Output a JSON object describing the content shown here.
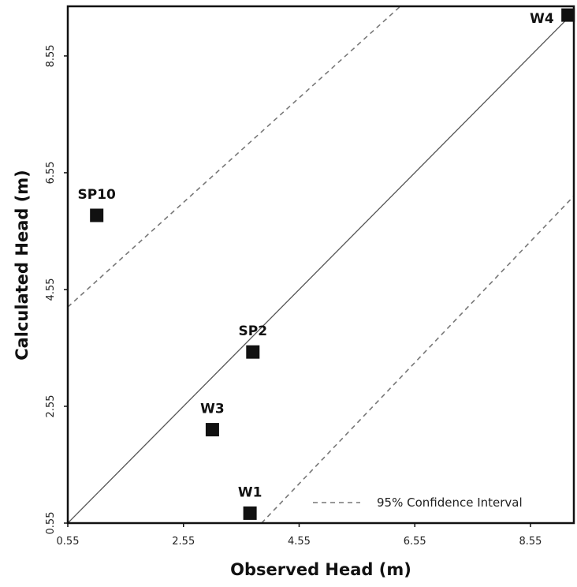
{
  "chart_data": {
    "type": "scatter",
    "title": "",
    "xlabel": "Observed Head (m)",
    "ylabel": "Calculated Head (m)",
    "xlim": [
      0.55,
      9.3
    ],
    "ylim": [
      0.55,
      9.4
    ],
    "xticks": [
      "0.55",
      "2.55",
      "4.55",
      "6.55",
      "8.55"
    ],
    "yticks": [
      "0.55",
      "2.55",
      "4.55",
      "6.55",
      "8.55"
    ],
    "grid": false,
    "points": [
      {
        "label": "SP10",
        "x": 1.05,
        "y": 5.82
      },
      {
        "label": "SP2",
        "x": 3.75,
        "y": 3.48
      },
      {
        "label": "W3",
        "x": 3.05,
        "y": 2.15
      },
      {
        "label": "W1",
        "x": 3.7,
        "y": 0.72
      },
      {
        "label": "W4",
        "x": 9.2,
        "y": 9.25
      }
    ],
    "reference_line": {
      "style": "solid",
      "from": [
        0.55,
        0.55
      ],
      "to": [
        9.3,
        9.3
      ]
    },
    "confidence_lines": [
      {
        "style": "dashed",
        "from": [
          0.55,
          4.25
        ],
        "to": [
          6.3,
          9.4
        ]
      },
      {
        "style": "dashed",
        "from": [
          3.9,
          0.55
        ],
        "to": [
          9.3,
          6.15
        ]
      }
    ],
    "legend": {
      "entries": [
        "95% Confidence Interval"
      ],
      "placement": "bottom-right"
    }
  }
}
